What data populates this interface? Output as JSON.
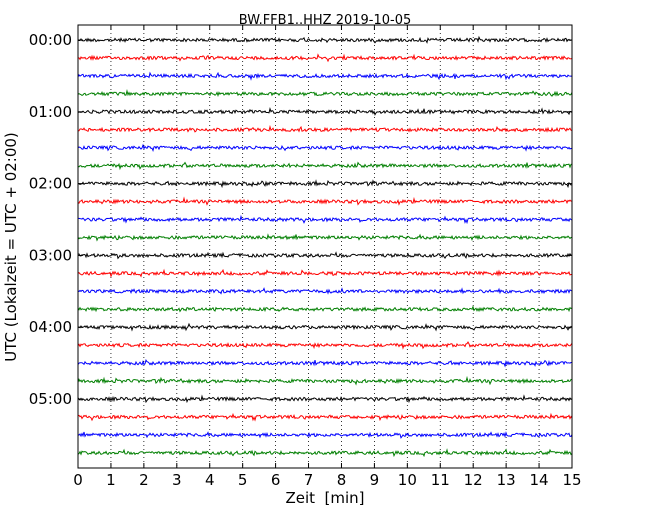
{
  "chart_data": {
    "type": "line",
    "title": "BW.FFB1..HHZ 2019-10-05",
    "xlabel": "Zeit  [min]",
    "ylabel": "UTC (Lokalzeit = UTC + 02:00)",
    "xlim": [
      0,
      15
    ],
    "x_ticks": [
      "0",
      "1",
      "2",
      "3",
      "4",
      "5",
      "6",
      "7",
      "8",
      "9",
      "10",
      "11",
      "12",
      "13",
      "14",
      "15"
    ],
    "y_tick_labels": [
      "00:00",
      "01:00",
      "02:00",
      "03:00",
      "04:00",
      "05:00"
    ],
    "grid": "vertical dotted at each minute",
    "trace_interval_minutes": 15,
    "trace_count": 24,
    "trace_start_times": [
      "00:00",
      "00:15",
      "00:30",
      "00:45",
      "01:00",
      "01:15",
      "01:30",
      "01:45",
      "02:00",
      "02:15",
      "02:30",
      "02:45",
      "03:00",
      "03:15",
      "03:30",
      "03:45",
      "04:00",
      "04:15",
      "04:30",
      "04:45",
      "05:00",
      "05:15",
      "05:30",
      "05:45"
    ],
    "trace_colors": [
      "#000000",
      "#ff0000",
      "#0000ff",
      "#007f00"
    ],
    "trace_style": "low-amplitude seismic noise, fills 0-15 min each trace"
  }
}
